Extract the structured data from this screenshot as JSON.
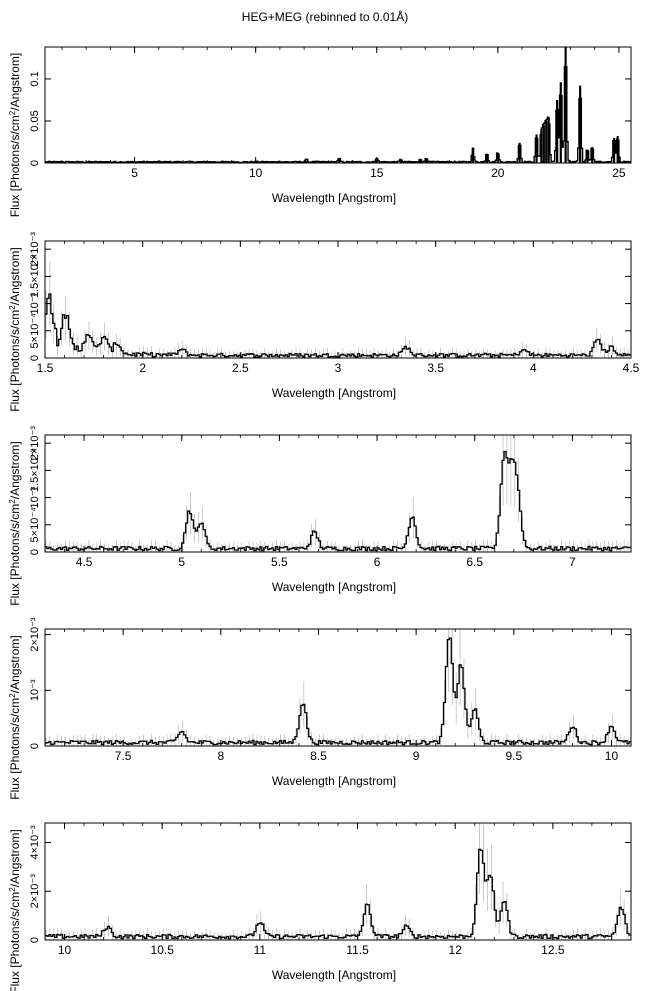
{
  "title": "HEG+MEG (rebinned to 0.01Å)",
  "ylabel_pre": "Flux [Photons/s/cm",
  "ylabel_sup": "2",
  "ylabel_post": "/Angstrom]",
  "chart_data": [
    {
      "type": "line",
      "xlabel": "Wavelength [Angstrom]",
      "xlim": [
        1.3,
        25.5
      ],
      "ylim": [
        0,
        0.138
      ],
      "xticks": [
        5,
        10,
        15,
        20,
        25
      ],
      "xtick_labels": [
        "5",
        "10",
        "15",
        "20",
        "25"
      ],
      "yticks": [
        0,
        0.05,
        0.1
      ],
      "ytick_labels": [
        "0",
        "0.05",
        "0.1"
      ],
      "features": [
        {
          "x": 12.1,
          "y": 0.003
        },
        {
          "x": 13.45,
          "y": 0.004
        },
        {
          "x": 15.0,
          "y": 0.005
        },
        {
          "x": 16.0,
          "y": 0.003
        },
        {
          "x": 16.8,
          "y": 0.004
        },
        {
          "x": 17.05,
          "y": 0.005
        },
        {
          "x": 18.97,
          "y": 0.016
        },
        {
          "x": 19.55,
          "y": 0.011
        },
        {
          "x": 20.0,
          "y": 0.012
        },
        {
          "x": 20.9,
          "y": 0.024
        },
        {
          "x": 21.6,
          "y": 0.034
        },
        {
          "x": 21.8,
          "y": 0.04
        },
        {
          "x": 21.9,
          "y": 0.045
        },
        {
          "x": 22.0,
          "y": 0.05
        },
        {
          "x": 22.1,
          "y": 0.054
        },
        {
          "x": 22.45,
          "y": 0.075
        },
        {
          "x": 22.6,
          "y": 0.096
        },
        {
          "x": 22.8,
          "y": 0.138
        },
        {
          "x": 23.4,
          "y": 0.092
        },
        {
          "x": 23.7,
          "y": 0.016
        },
        {
          "x": 23.9,
          "y": 0.019
        },
        {
          "x": 24.8,
          "y": 0.03
        },
        {
          "x": 24.95,
          "y": 0.032
        }
      ]
    },
    {
      "type": "line",
      "xlabel": "Wavelength [Angstrom]",
      "xlim": [
        1.5,
        4.5
      ],
      "ylim": [
        0,
        0.00215
      ],
      "xticks": [
        1.5,
        2,
        2.5,
        3,
        3.5,
        4,
        4.5
      ],
      "xtick_labels": [
        "1.5",
        "2",
        "2.5",
        "3",
        "3.5",
        "4",
        "4.5"
      ],
      "yticks": [
        0,
        0.0005,
        0.001,
        0.0015,
        0.002
      ],
      "ytick_labels": [
        "0",
        "5×10⁻⁴",
        "10⁻³",
        "1.5×10⁻³",
        "2×10⁻³"
      ],
      "features": [
        {
          "x": 1.52,
          "y": 0.00095
        },
        {
          "x": 1.6,
          "y": 0.00065
        },
        {
          "x": 1.72,
          "y": 0.00035
        },
        {
          "x": 1.8,
          "y": 0.0003
        },
        {
          "x": 1.87,
          "y": 0.0002
        },
        {
          "x": 2.2,
          "y": 0.0001
        },
        {
          "x": 3.35,
          "y": 0.00015
        },
        {
          "x": 3.95,
          "y": 0.0001
        },
        {
          "x": 4.33,
          "y": 0.0003
        },
        {
          "x": 4.4,
          "y": 0.00015
        }
      ]
    },
    {
      "type": "line",
      "xlabel": "Wavelength [Angstrom]",
      "xlim": [
        4.3,
        7.3
      ],
      "ylim": [
        0,
        0.00215
      ],
      "xticks": [
        4.5,
        5,
        5.5,
        6,
        6.5,
        7
      ],
      "xtick_labels": [
        "4.5",
        "5",
        "5.5",
        "6",
        "6.5",
        "7"
      ],
      "yticks": [
        0,
        0.0005,
        0.001,
        0.0015,
        0.002
      ],
      "ytick_labels": [
        "0",
        "5×10⁻⁴",
        "10⁻³",
        "1.5×10⁻³",
        "2×10⁻³"
      ],
      "features": [
        {
          "x": 5.04,
          "y": 0.0007
        },
        {
          "x": 5.1,
          "y": 0.0005
        },
        {
          "x": 5.68,
          "y": 0.0003
        },
        {
          "x": 6.18,
          "y": 0.0006
        },
        {
          "x": 6.65,
          "y": 0.00165
        },
        {
          "x": 6.69,
          "y": 0.0013
        },
        {
          "x": 6.72,
          "y": 0.0009
        }
      ]
    },
    {
      "type": "line",
      "xlabel": "Wavelength [Angstrom]",
      "xlim": [
        7.1,
        10.1
      ],
      "ylim": [
        0,
        0.0021
      ],
      "xticks": [
        7.5,
        8,
        8.5,
        9,
        9.5,
        10
      ],
      "xtick_labels": [
        "7.5",
        "8",
        "8.5",
        "9",
        "9.5",
        "10"
      ],
      "yticks": [
        0,
        0.001,
        0.002
      ],
      "ytick_labels": [
        "0",
        "10⁻³",
        "2×10⁻³"
      ],
      "features": [
        {
          "x": 7.8,
          "y": 0.0002
        },
        {
          "x": 8.42,
          "y": 0.00072
        },
        {
          "x": 9.17,
          "y": 0.0019
        },
        {
          "x": 9.23,
          "y": 0.0014
        },
        {
          "x": 9.3,
          "y": 0.0006
        },
        {
          "x": 9.8,
          "y": 0.0003
        },
        {
          "x": 10.0,
          "y": 0.0003
        }
      ]
    },
    {
      "type": "line",
      "xlabel": "Wavelength [Angstrom]",
      "xlim": [
        9.9,
        12.9
      ],
      "ylim": [
        0,
        0.0048
      ],
      "xticks": [
        10,
        10.5,
        11,
        11.5,
        12,
        12.5
      ],
      "xtick_labels": [
        "10",
        "10.5",
        "11",
        "11.5",
        "12",
        "12.5"
      ],
      "yticks": [
        0,
        0.002,
        0.004
      ],
      "ytick_labels": [
        "0",
        "2×10⁻³",
        "4×10⁻³"
      ],
      "features": [
        {
          "x": 10.22,
          "y": 0.0004
        },
        {
          "x": 11.0,
          "y": 0.0006
        },
        {
          "x": 11.55,
          "y": 0.0013
        },
        {
          "x": 11.75,
          "y": 0.0004
        },
        {
          "x": 12.13,
          "y": 0.0036
        },
        {
          "x": 12.18,
          "y": 0.0025
        },
        {
          "x": 12.25,
          "y": 0.0015
        },
        {
          "x": 12.85,
          "y": 0.0012
        }
      ]
    }
  ]
}
